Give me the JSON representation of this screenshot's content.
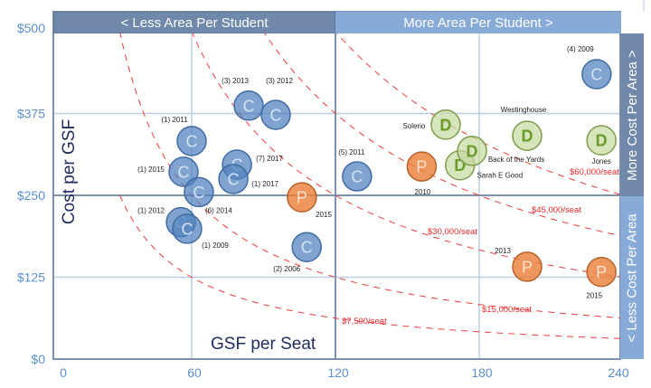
{
  "chart_data": {
    "type": "scatter",
    "xlabel": "GSF per Seat",
    "ylabel": "Cost per GSF",
    "xlim": [
      0,
      240
    ],
    "ylim": [
      0,
      500
    ],
    "grid": true,
    "x_ticks": [
      {
        "value": 0,
        "label": "0"
      },
      {
        "value": 60,
        "label": "60"
      },
      {
        "value": 120,
        "label": "120"
      },
      {
        "value": 180,
        "label": "180"
      },
      {
        "value": 240,
        "label": "240"
      }
    ],
    "y_ticks": [
      {
        "value": 0,
        "label": "$0"
      },
      {
        "value": 125,
        "label": "$125"
      },
      {
        "value": 250,
        "label": "$250"
      },
      {
        "value": 375,
        "label": "$375"
      },
      {
        "value": 500,
        "label": "$500"
      }
    ],
    "quadrant_labels": {
      "top_left": "< Less Area Per Student",
      "top_right": "More Area Per Student >",
      "right_top": "More Cost Per Area >",
      "right_bottom": "< Less Cost Per Area"
    },
    "cost_per_seat_curves": [
      {
        "value": 7500,
        "label": "$7,500/seat"
      },
      {
        "value": 15000,
        "label": "$15,000/seat"
      },
      {
        "value": 30000,
        "label": "$30,000/seat"
      },
      {
        "value": 45000,
        "label": "$45,000/seat"
      },
      {
        "value": 60000,
        "label": "$60,000/seat"
      }
    ],
    "series_colors": {
      "C": "#4f81bd",
      "P": "#e46c0a",
      "D": "#9bbb59"
    },
    "points": [
      {
        "type": "C",
        "label": "(1) 2011",
        "x": 60,
        "y": 333
      },
      {
        "type": "C",
        "label": "(1) 2015",
        "x": 56.6,
        "y": 286
      },
      {
        "type": "C",
        "label": "(6) 2014",
        "x": 63,
        "y": 255
      },
      {
        "type": "C",
        "label": "(1) 2012",
        "x": 55.5,
        "y": 209
      },
      {
        "type": "C",
        "label": "(1) 2009",
        "x": 58.1,
        "y": 199
      },
      {
        "type": "C",
        "label": "(3) 2013",
        "x": 83.8,
        "y": 387
      },
      {
        "type": "C",
        "label": "(3) 2012",
        "x": 95.1,
        "y": 373
      },
      {
        "type": "C",
        "label": "(7) 2017",
        "x": 78.9,
        "y": 297
      },
      {
        "type": "C",
        "label": "(1) 2017",
        "x": 77.4,
        "y": 275
      },
      {
        "type": "P",
        "label": "2015",
        "x": 106,
        "y": 247
      },
      {
        "type": "C",
        "label": "(2) 2006",
        "x": 108,
        "y": 171
      },
      {
        "type": "C",
        "label": "(5) 2011",
        "x": 129,
        "y": 279
      },
      {
        "type": "P",
        "label": "2010",
        "x": 156,
        "y": 294
      },
      {
        "type": "D",
        "label": "Solerio",
        "x": 166,
        "y": 358
      },
      {
        "type": "D",
        "label": "Sarah E Good",
        "x": 172,
        "y": 296
      },
      {
        "type": "D",
        "label": "Back of the Yards",
        "x": 177,
        "y": 318
      },
      {
        "type": "D",
        "label": "Westinghouse",
        "x": 200,
        "y": 341
      },
      {
        "type": "D",
        "label": "Jones",
        "x": 231,
        "y": 334
      },
      {
        "type": "C",
        "label": "(4) 2009",
        "x": 229,
        "y": 435
      },
      {
        "type": "P",
        "label": "2013",
        "x": 200,
        "y": 141
      },
      {
        "type": "P",
        "label": "2015",
        "x": 231,
        "y": 133
      }
    ]
  }
}
